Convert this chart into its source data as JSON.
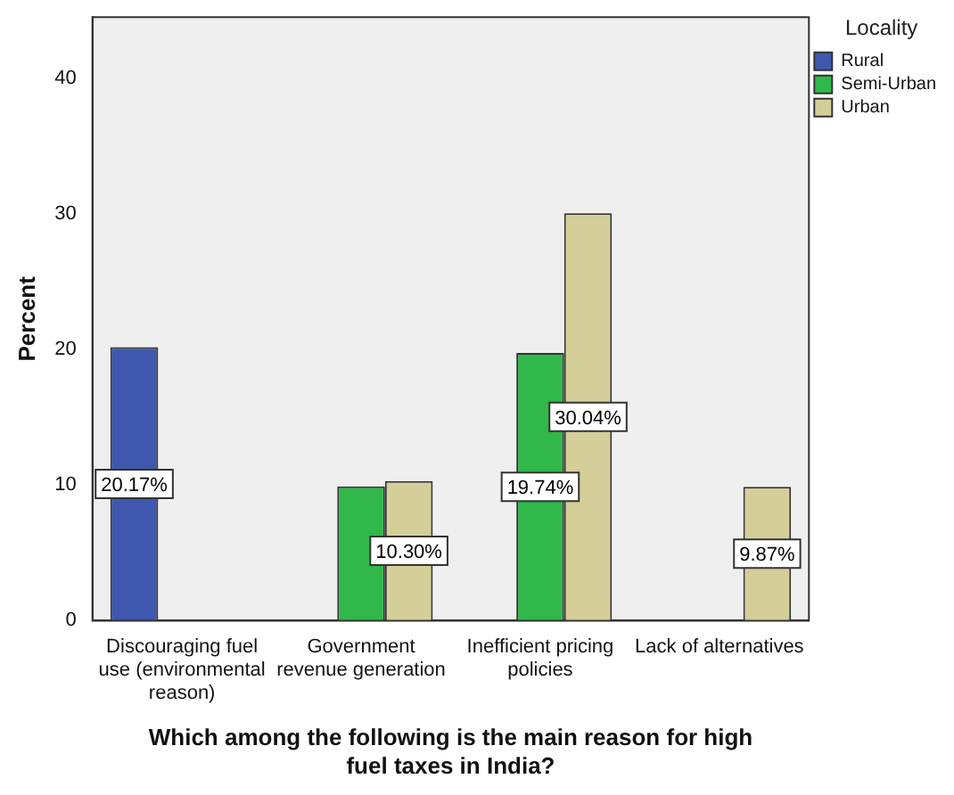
{
  "chart_data": {
    "type": "bar",
    "xlabel": "Which among the following is the main reason for high fuel taxes in India?",
    "ylabel": "Percent",
    "legend_title": "Locality",
    "legend": "top right",
    "categories": [
      "Discouraging fuel use (environmental reason)",
      "Government revenue generation",
      "Inefficient pricing policies",
      "Lack of alternatives"
    ],
    "series": [
      {
        "name": "Rural",
        "color": "#3f57ae",
        "values": [
          20.17,
          null,
          null,
          null
        ],
        "value_labels": [
          "20.17%",
          null,
          null,
          null
        ]
      },
      {
        "name": "Semi-Urban",
        "color": "#30b84a",
        "values": [
          null,
          9.9,
          19.74,
          null
        ],
        "value_labels": [
          null,
          null,
          "19.74%",
          null
        ]
      },
      {
        "name": "Urban",
        "color": "#d4cf98",
        "values": [
          null,
          10.3,
          30.04,
          9.87
        ],
        "value_labels": [
          null,
          "10.30%",
          "30.04%",
          "9.87%"
        ]
      }
    ],
    "ylim": [
      0,
      44.5
    ],
    "yticks": [
      0,
      10,
      20,
      30,
      40
    ],
    "grid": false
  }
}
